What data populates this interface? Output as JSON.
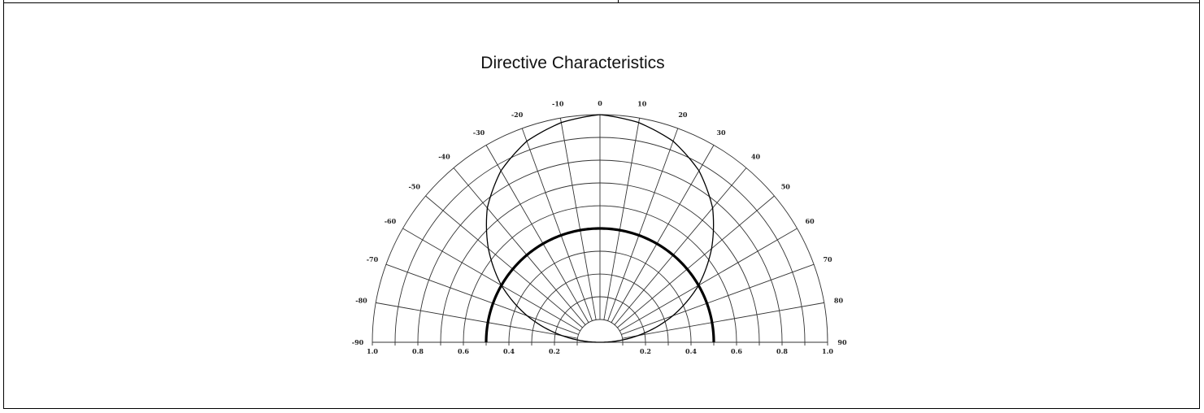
{
  "chart_data": {
    "type": "polar",
    "title": "Directive Characteristics",
    "angle_unit": "degrees",
    "angle_range": [
      -90,
      90
    ],
    "angle_ticks": [
      "-90",
      "-80",
      "-70",
      "-60",
      "-50",
      "-40",
      "-30",
      "-20",
      "-10",
      "0",
      "10",
      "20",
      "30",
      "40",
      "50",
      "60",
      "70",
      "80",
      "90"
    ],
    "radius_range": [
      0,
      1.0
    ],
    "radius_ticks_left": [
      "1.0",
      "0.8",
      "0.6",
      "0.4",
      "0.2"
    ],
    "radius_ticks_right": [
      "0.2",
      "0.4",
      "0.6",
      "0.8",
      "1.0"
    ],
    "grid": true,
    "series": [
      {
        "style": "thin",
        "angles": [
          -90,
          -80,
          -70,
          -60,
          -50,
          -40,
          -30,
          -20,
          -10,
          0,
          10,
          20,
          30,
          40,
          50,
          60,
          70,
          80,
          90
        ],
        "values": [
          0.0,
          0.17,
          0.34,
          0.5,
          0.64,
          0.77,
          0.87,
          0.94,
          0.98,
          1.0,
          0.98,
          0.94,
          0.87,
          0.77,
          0.64,
          0.5,
          0.34,
          0.17,
          0.0
        ]
      },
      {
        "style": "bold",
        "angles": [
          -90,
          -80,
          -70,
          -60,
          -50,
          -40,
          -30,
          -20,
          -10,
          0,
          10,
          20,
          30,
          40,
          50,
          60,
          70,
          80,
          90
        ],
        "values": [
          0.5,
          0.5,
          0.5,
          0.5,
          0.5,
          0.5,
          0.5,
          0.5,
          0.5,
          0.5,
          0.5,
          0.5,
          0.5,
          0.5,
          0.5,
          0.5,
          0.5,
          0.5,
          0.5
        ]
      }
    ]
  }
}
